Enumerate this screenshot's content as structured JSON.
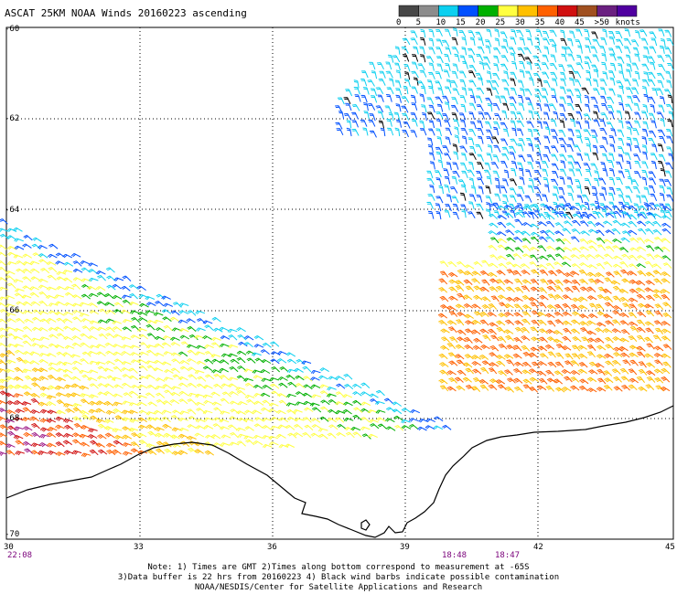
{
  "title": "ASCAT 25KM NOAA Winds 20160223 ascending",
  "legend": {
    "unit": "knots",
    "labels": [
      "0",
      "5",
      "10",
      "15",
      "20",
      "25",
      "30",
      "35",
      "40",
      "45",
      ">50"
    ],
    "colors": [
      "#474747",
      "#8c8c8c",
      "#0cd0f0",
      "#0050ff",
      "#00b000",
      "#ffff40",
      "#ffc000",
      "#ff6000",
      "#d01010",
      "#a05020",
      "#6a2080",
      "#5000a0"
    ]
  },
  "lat_labels": [
    "-60",
    "-62",
    "-64",
    "-66",
    "-68",
    "-70"
  ],
  "lon_labels": [
    "30",
    "33",
    "36",
    "39",
    "42",
    "45"
  ],
  "time_labels": [
    "22:08",
    "18:48",
    "18:47"
  ],
  "notes": [
    "Note: 1) Times are GMT 2)Times along bottom correspond to measurement at -65S",
    "3)Data buffer is 22 hrs from 20160223 4) Black wind barbs indicate possible contamination",
    "NOAA/NESDIS/Center for Satellite Applications and Research"
  ]
}
